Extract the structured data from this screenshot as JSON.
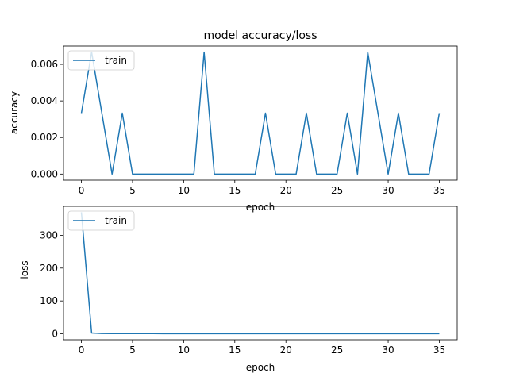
{
  "chart_data": [
    {
      "type": "line",
      "title": "model accuracy/loss",
      "xlabel": "epoch",
      "ylabel": "accuracy",
      "xlim": [
        -1.75,
        36.75
      ],
      "ylim": [
        -0.0003333,
        0.007
      ],
      "x_ticks": [
        0,
        5,
        10,
        15,
        20,
        25,
        30,
        35
      ],
      "x_tick_labels": [
        "0",
        "5",
        "10",
        "15",
        "20",
        "25",
        "30",
        "35"
      ],
      "y_ticks": [
        0,
        0.002,
        0.004,
        0.006
      ],
      "y_tick_labels": [
        "0.000",
        "0.002",
        "0.004",
        "0.006"
      ],
      "grid": false,
      "legend": {
        "position": "upper left",
        "entries": [
          "train"
        ]
      },
      "series": [
        {
          "name": "train",
          "color": "#1f77b4",
          "x": [
            0,
            1,
            2,
            3,
            4,
            5,
            6,
            7,
            8,
            9,
            10,
            11,
            12,
            13,
            14,
            15,
            16,
            17,
            18,
            19,
            20,
            21,
            22,
            23,
            24,
            25,
            26,
            27,
            28,
            29,
            30,
            31,
            32,
            33,
            34,
            35
          ],
          "values": [
            0.003333,
            0.006667,
            0.003333,
            0,
            0.003333,
            0,
            0,
            0,
            0,
            0,
            0,
            0,
            0.006667,
            0,
            0,
            0,
            0,
            0,
            0.003333,
            0,
            0,
            0,
            0.003333,
            0,
            0,
            0,
            0.003333,
            0,
            0.006667,
            0.003333,
            0,
            0.003333,
            0,
            0,
            0,
            0.003333
          ]
        }
      ]
    },
    {
      "type": "line",
      "title": "",
      "xlabel": "epoch",
      "ylabel": "loss",
      "xlim": [
        -1.75,
        36.75
      ],
      "ylim": [
        -18,
        388
      ],
      "x_ticks": [
        0,
        5,
        10,
        15,
        20,
        25,
        30,
        35
      ],
      "x_tick_labels": [
        "0",
        "5",
        "10",
        "15",
        "20",
        "25",
        "30",
        "35"
      ],
      "y_ticks": [
        0,
        100,
        200,
        300
      ],
      "y_tick_labels": [
        "0",
        "100",
        "200",
        "300"
      ],
      "grid": false,
      "legend": {
        "position": "upper left",
        "entries": [
          "train"
        ]
      },
      "series": [
        {
          "name": "train",
          "color": "#1f77b4",
          "x": [
            0,
            1,
            2,
            3,
            4,
            5,
            6,
            7,
            8,
            9,
            10,
            11,
            12,
            13,
            14,
            15,
            16,
            17,
            18,
            19,
            20,
            21,
            22,
            23,
            24,
            25,
            26,
            27,
            28,
            29,
            30,
            31,
            32,
            33,
            34,
            35
          ],
          "values": [
            370,
            2.5,
            1,
            0.8,
            0.7,
            0.6,
            0.6,
            0.6,
            0.5,
            0.5,
            0.5,
            0.5,
            0.5,
            0.5,
            0.5,
            0.5,
            0.5,
            0.5,
            0.5,
            0.5,
            0.5,
            0.5,
            0.5,
            0.5,
            0.5,
            0.5,
            0.5,
            0.5,
            0.5,
            0.5,
            0.5,
            0.5,
            0.5,
            0.5,
            0.5,
            0.5
          ]
        }
      ]
    }
  ]
}
